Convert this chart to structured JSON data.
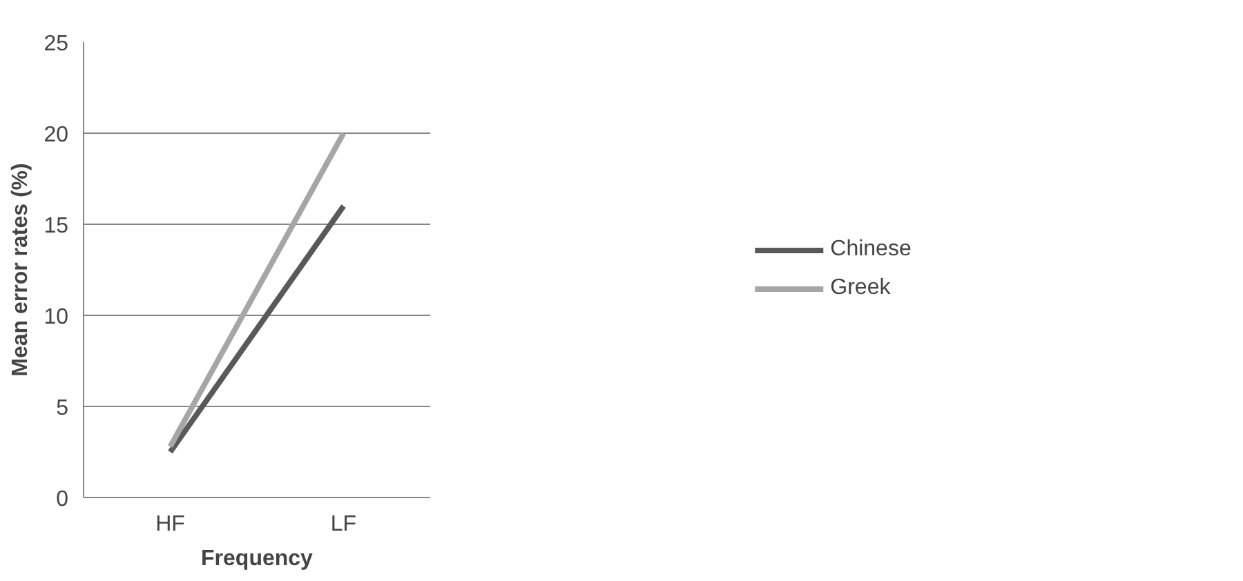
{
  "chart_data": {
    "type": "line",
    "categories": [
      "HF",
      "LF"
    ],
    "xlabel": "Frequency",
    "ylabel": "Mean error rates (%)",
    "ylim": [
      0,
      25
    ],
    "yticks": [
      0,
      5,
      10,
      15,
      20,
      25
    ],
    "grid": "y",
    "legend": "right",
    "marker": "none",
    "line_style": "solid",
    "series": [
      {
        "name": "Chinese",
        "color": "#595959",
        "values": [
          2.5,
          16
        ]
      },
      {
        "name": "Greek",
        "color": "#a6a6a6",
        "values": [
          2.8,
          20
        ]
      }
    ]
  }
}
